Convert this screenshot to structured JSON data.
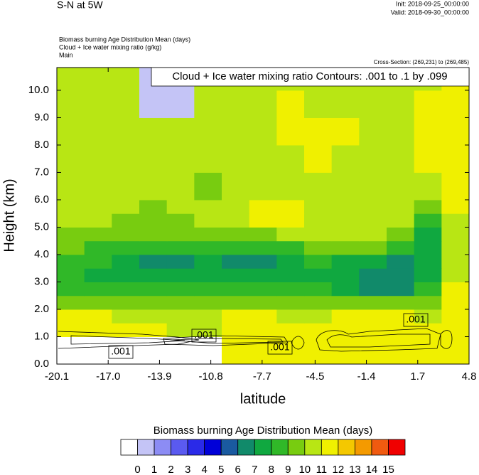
{
  "chart_data": {
    "type": "filled_contour",
    "title": "S-N at 5W",
    "init": "Init: 2018-09-25_00:00:00",
    "valid": "Valid: 2018-09-30_00:00:00",
    "subtitles": [
      "Biomass burning Age Distribution Mean   (days)",
      "Cloud + Ice water mixing ratio   (g/kg)",
      "Main"
    ],
    "cross_section": "Cross-Section: (269,231) to (269,485)",
    "contour_title": "Cloud + Ice water mixing ratio Contours: .001 to .1 by .099",
    "contour_labels": [
      ".001",
      ".001",
      ".001",
      ".001"
    ],
    "x_label": "latitude",
    "y_label": "Height (km)",
    "xlim": [
      -20.1,
      4.8
    ],
    "ylim": [
      0,
      10.83
    ],
    "xticks": [
      -20.1,
      {
        "value": -17,
        "label": "-17.0"
      },
      -13.9,
      -10.8,
      -7.7,
      -4.5,
      -1.4,
      1.7,
      4.8
    ],
    "yticks": [
      {
        "value": 0,
        "label": "0.0"
      },
      {
        "value": 1,
        "label": "1.0"
      },
      {
        "value": 2,
        "label": "2.0"
      },
      {
        "value": 3,
        "label": "3.0"
      },
      {
        "value": 4,
        "label": "4.0"
      },
      {
        "value": 5,
        "label": "5.0"
      },
      {
        "value": 6,
        "label": "6.0"
      },
      {
        "value": 7,
        "label": "7.0"
      },
      {
        "value": 8,
        "label": "8.0"
      },
      {
        "value": 9,
        "label": "9.0"
      },
      {
        "value": 10,
        "label": "10.0"
      }
    ],
    "x_bins": [
      -20.1,
      -18.44,
      -16.78,
      -15.12,
      -13.46,
      -11.8,
      -10.14,
      -8.48,
      -6.82,
      -5.16,
      -3.5,
      -1.84,
      -0.18,
      1.48,
      3.14,
      4.8
    ],
    "y_bins": [
      0,
      0.5,
      1,
      1.5,
      2,
      2.5,
      3,
      3.5,
      4,
      4.5,
      5,
      5.5,
      6,
      7,
      8,
      9,
      10,
      10.83
    ],
    "z": [
      [
        null,
        null,
        null,
        null,
        null,
        null,
        11.5,
        11.5,
        11.5,
        11.5,
        11.5,
        11.5,
        11.5,
        11.5,
        11.5
      ],
      [
        null,
        null,
        null,
        null,
        null,
        null,
        11.5,
        11.5,
        11.5,
        11.5,
        11.5,
        11.5,
        11.5,
        11.5,
        11.5
      ],
      [
        11.5,
        11.5,
        11.5,
        11.5,
        10.5,
        10.5,
        11.5,
        11.5,
        11.5,
        11.5,
        11.5,
        11.5,
        11.5,
        11.5,
        11.5
      ],
      [
        11.5,
        11.5,
        10.5,
        10.5,
        10.5,
        10.5,
        11.5,
        11.5,
        10.5,
        10.5,
        11.5,
        11.5,
        11.5,
        10.5,
        11.5
      ],
      [
        9.5,
        9.5,
        9.5,
        9.5,
        9.5,
        9.5,
        9.5,
        9.5,
        9.5,
        9.5,
        9.5,
        9.5,
        9.5,
        9.5,
        11.5
      ],
      [
        8.5,
        8.5,
        8.5,
        8.5,
        8.5,
        8.5,
        8.5,
        8.5,
        8.5,
        8.5,
        7.5,
        6.5,
        6.5,
        8.5,
        11.5
      ],
      [
        8.5,
        7.5,
        7.5,
        7.5,
        7.5,
        7.5,
        7.5,
        7.5,
        7.5,
        7.5,
        7.5,
        6.5,
        6.5,
        7.5,
        10.5
      ],
      [
        8.5,
        8.5,
        7.5,
        6.5,
        6.5,
        7.5,
        6.5,
        6.5,
        7.5,
        8.5,
        7.5,
        7.5,
        6.5,
        7.5,
        10.5
      ],
      [
        9.5,
        8.5,
        8.5,
        8.5,
        8.5,
        8.5,
        8.5,
        8.5,
        8.5,
        9.5,
        9.5,
        9.5,
        8.5,
        7.5,
        10.5
      ],
      [
        9.5,
        9.5,
        9.5,
        9.5,
        9.5,
        9.5,
        9.5,
        9.5,
        10.5,
        10.5,
        10.5,
        10.5,
        9.5,
        7.5,
        10.5
      ],
      [
        10.5,
        10.5,
        9.5,
        9.5,
        9.5,
        10.5,
        10.5,
        11.5,
        11.5,
        10.5,
        10.5,
        10.5,
        10.5,
        8.5,
        10.5
      ],
      [
        10.5,
        10.5,
        10.5,
        9.5,
        10.5,
        10.5,
        10.5,
        11.5,
        11.5,
        10.5,
        10.5,
        10.5,
        10.5,
        9.5,
        11.5
      ],
      [
        10.5,
        10.5,
        10.5,
        10.5,
        10.5,
        9.5,
        10.5,
        10.5,
        10.5,
        10.5,
        10.5,
        10.5,
        10.5,
        10.5,
        11.5
      ],
      [
        10.5,
        10.5,
        10.5,
        10.5,
        10.5,
        10.5,
        10.5,
        10.5,
        10.5,
        11.5,
        10.5,
        10.5,
        10.5,
        11.5,
        11.5
      ],
      [
        10.5,
        10.5,
        10.5,
        10.5,
        10.5,
        10.5,
        10.5,
        10.5,
        11.5,
        11.5,
        11.5,
        10.5,
        10.5,
        11.5,
        11.5
      ],
      [
        10.5,
        10.5,
        10.5,
        0.5,
        0.5,
        10.5,
        10.5,
        10.5,
        11.5,
        10.5,
        10.5,
        10.5,
        10.5,
        11.5,
        11.5
      ],
      [
        10.5,
        10.5,
        10.5,
        0.5,
        0.5,
        10.5,
        10.5,
        10.5,
        10.5,
        10.5,
        10.5,
        10.5,
        10.5,
        10.5,
        11.5
      ]
    ],
    "colorbar": {
      "title": "Biomass burning Age Distribution Mean  (days)",
      "levels": [
        0,
        1,
        2,
        3,
        4,
        5,
        6,
        7,
        8,
        9,
        10,
        11,
        12,
        13,
        14,
        15
      ],
      "colors": [
        "#ffffff",
        "#c4c4f6",
        "#8c8cf4",
        "#5a5af0",
        "#2a2ae8",
        "#0000d8",
        "#1a5aa0",
        "#118a6a",
        "#10a840",
        "#30b828",
        "#78cc10",
        "#b8e614",
        "#f0f000",
        "#f4c800",
        "#f49a00",
        "#f05a10",
        "#f00000"
      ]
    }
  }
}
